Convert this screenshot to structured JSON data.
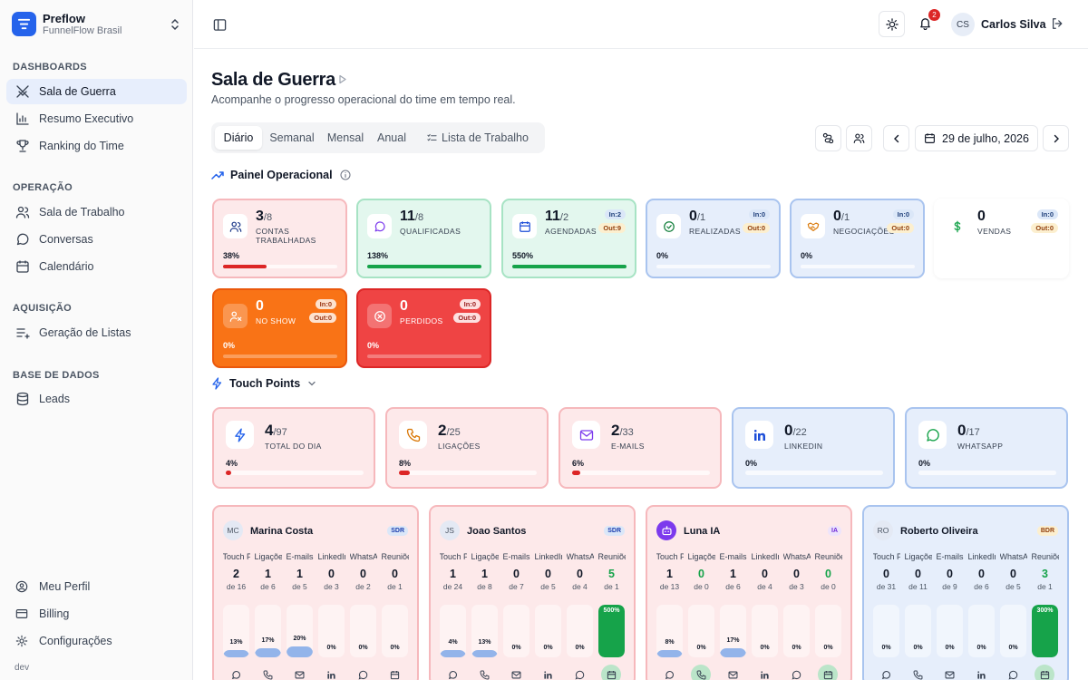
{
  "org": {
    "name": "Preflow",
    "sub": "FunnelFlow Brasil"
  },
  "sidebar": {
    "sections": [
      {
        "title": "DASHBOARDS",
        "items": [
          {
            "label": "Sala de Guerra"
          },
          {
            "label": "Resumo Executivo"
          },
          {
            "label": "Ranking do Time"
          }
        ]
      },
      {
        "title": "OPERAÇÃO",
        "items": [
          {
            "label": "Sala de Trabalho"
          },
          {
            "label": "Conversas"
          },
          {
            "label": "Calendário"
          }
        ]
      },
      {
        "title": "AQUISIÇÃO",
        "items": [
          {
            "label": "Geração de Listas"
          }
        ]
      },
      {
        "title": "BASE DE DADOS",
        "items": [
          {
            "label": "Leads"
          }
        ]
      }
    ],
    "bottom": [
      {
        "label": "Meu Perfil"
      },
      {
        "label": "Billing"
      },
      {
        "label": "Configurações"
      }
    ],
    "env": "dev"
  },
  "header": {
    "notifications": "2",
    "user_initials": "CS",
    "user_name": "Carlos Silva"
  },
  "page": {
    "title": "Sala de Guerra",
    "subtitle": "Acompanhe o progresso operacional do time em tempo real."
  },
  "tabs": [
    {
      "label": "Diário"
    },
    {
      "label": "Semanal"
    },
    {
      "label": "Mensal"
    },
    {
      "label": "Anual"
    },
    {
      "label": "Lista de Trabalho"
    }
  ],
  "date": "29 de julho, 2026",
  "panel_title": "Painel Operacional",
  "kpis": [
    {
      "value": "3",
      "target": "/8",
      "label": "CONTAS TRABALHADAS",
      "pct": "38%",
      "fill": 0.38,
      "in": "",
      "out": ""
    },
    {
      "value": "11",
      "target": "/8",
      "label": "QUALIFICADAS",
      "pct": "138%",
      "fill": 1.0,
      "in": "",
      "out": ""
    },
    {
      "value": "11",
      "target": "/2",
      "label": "AGENDADAS",
      "pct": "550%",
      "fill": 1.0,
      "in": "In:2",
      "out": "Out:9"
    },
    {
      "value": "0",
      "target": "/1",
      "label": "REALIZADAS",
      "pct": "0%",
      "fill": 0,
      "in": "In:0",
      "out": "Out:0"
    },
    {
      "value": "0",
      "target": "/1",
      "label": "NEGOCIAÇÕES",
      "pct": "0%",
      "fill": 0,
      "in": "In:0",
      "out": "Out:0"
    },
    {
      "value": "0",
      "target": "",
      "label": "VENDAS",
      "pct": "",
      "fill": 0,
      "in": "In:0",
      "out": "Out:0"
    },
    {
      "value": "0",
      "target": "",
      "label": "NO SHOW",
      "pct": "0%",
      "fill": 0,
      "in": "In:0",
      "out": "Out:0"
    },
    {
      "value": "0",
      "target": "",
      "label": "PERDIDOS",
      "pct": "0%",
      "fill": 0,
      "in": "In:0",
      "out": "Out:0"
    }
  ],
  "touch_title": "Touch Points",
  "touch": [
    {
      "value": "4",
      "target": "/97",
      "label": "TOTAL DO DIA",
      "pct": "4%",
      "fill": 0.04
    },
    {
      "value": "2",
      "target": "/25",
      "label": "LIGAÇÕES",
      "pct": "8%",
      "fill": 0.08
    },
    {
      "value": "2",
      "target": "/33",
      "label": "E-MAILS",
      "pct": "6%",
      "fill": 0.06
    },
    {
      "value": "0",
      "target": "/22",
      "label": "LINKEDIN",
      "pct": "0%",
      "fill": 0
    },
    {
      "value": "0",
      "target": "/17",
      "label": "WHATSAPP",
      "pct": "0%",
      "fill": 0
    }
  ],
  "metric_headers": [
    "Touch Points",
    "Ligações",
    "E-mails",
    "LinkedIn",
    "WhatsApp",
    "Reuniões"
  ],
  "people": [
    {
      "initials": "MC",
      "name": "Marina Costa",
      "role": "SDR",
      "metrics": [
        {
          "v": "2",
          "d": "de 16",
          "pct": "13%",
          "fill": 0.13
        },
        {
          "v": "1",
          "d": "de 6",
          "pct": "17%",
          "fill": 0.17
        },
        {
          "v": "1",
          "d": "de 5",
          "pct": "20%",
          "fill": 0.2
        },
        {
          "v": "0",
          "d": "de 3",
          "pct": "0%",
          "fill": 0
        },
        {
          "v": "0",
          "d": "de 2",
          "pct": "0%",
          "fill": 0
        },
        {
          "v": "0",
          "d": "de 1",
          "pct": "0%",
          "fill": 0
        }
      ]
    },
    {
      "initials": "JS",
      "name": "Joao Santos",
      "role": "SDR",
      "metrics": [
        {
          "v": "1",
          "d": "de 24",
          "pct": "4%",
          "fill": 0.04
        },
        {
          "v": "1",
          "d": "de 8",
          "pct": "13%",
          "fill": 0.13
        },
        {
          "v": "0",
          "d": "de 7",
          "pct": "0%",
          "fill": 0
        },
        {
          "v": "0",
          "d": "de 5",
          "pct": "0%",
          "fill": 0
        },
        {
          "v": "0",
          "d": "de 4",
          "pct": "0%",
          "fill": 0
        },
        {
          "v": "5",
          "d": "de 1",
          "pct": "500%",
          "fill": 1.0
        }
      ]
    },
    {
      "initials": "",
      "name": "Luna IA",
      "role": "IA",
      "metrics": [
        {
          "v": "1",
          "d": "de 13",
          "pct": "8%",
          "fill": 0.08
        },
        {
          "v": "0",
          "d": "de 0",
          "pct": "0%",
          "fill": 0
        },
        {
          "v": "1",
          "d": "de 6",
          "pct": "17%",
          "fill": 0.17
        },
        {
          "v": "0",
          "d": "de 4",
          "pct": "0%",
          "fill": 0
        },
        {
          "v": "0",
          "d": "de 3",
          "pct": "0%",
          "fill": 0
        },
        {
          "v": "0",
          "d": "de 0",
          "pct": "0%",
          "fill": 0
        }
      ]
    },
    {
      "initials": "RO",
      "name": "Roberto Oliveira",
      "role": "BDR",
      "metrics": [
        {
          "v": "0",
          "d": "de 31",
          "pct": "0%",
          "fill": 0
        },
        {
          "v": "0",
          "d": "de 11",
          "pct": "0%",
          "fill": 0
        },
        {
          "v": "0",
          "d": "de 9",
          "pct": "0%",
          "fill": 0
        },
        {
          "v": "0",
          "d": "de 6",
          "pct": "0%",
          "fill": 0
        },
        {
          "v": "0",
          "d": "de 5",
          "pct": "0%",
          "fill": 0
        },
        {
          "v": "3",
          "d": "de 1",
          "pct": "300%",
          "fill": 1.0
        }
      ]
    }
  ]
}
